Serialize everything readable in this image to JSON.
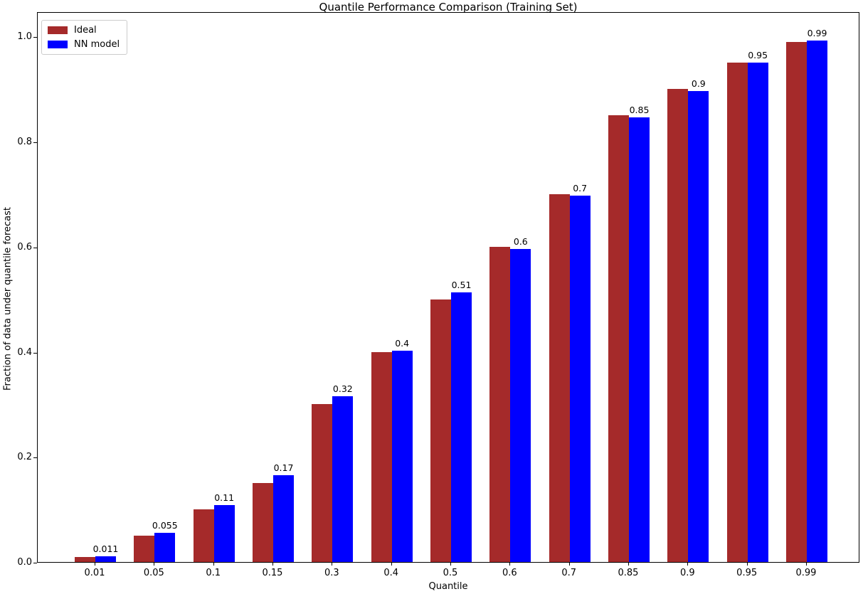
{
  "chart_data": {
    "type": "bar",
    "title": "Quantile Performance Comparison (Training Set)",
    "xlabel": "Quantile",
    "ylabel": "Fraction of data under quantile forecast",
    "categories": [
      "0.01",
      "0.05",
      "0.1",
      "0.15",
      "0.3",
      "0.4",
      "0.5",
      "0.6",
      "0.7",
      "0.85",
      "0.9",
      "0.95",
      "0.99"
    ],
    "series": [
      {
        "name": "Ideal",
        "color": "#A52A2A",
        "values": [
          0.01,
          0.05,
          0.1,
          0.15,
          0.3,
          0.4,
          0.5,
          0.6,
          0.7,
          0.85,
          0.9,
          0.95,
          0.99
        ]
      },
      {
        "name": "NN model",
        "color": "#0000FF",
        "values": [
          0.011,
          0.055,
          0.108,
          0.165,
          0.315,
          0.402,
          0.513,
          0.596,
          0.698,
          0.846,
          0.897,
          0.951,
          0.992
        ],
        "labels": [
          "0.011",
          "0.055",
          "0.11",
          "0.17",
          "0.32",
          "0.4",
          "0.51",
          "0.6",
          "0.7",
          "0.85",
          "0.9",
          "0.95",
          "0.99"
        ]
      }
    ],
    "yticks": [
      "0.0",
      "0.2",
      "0.4",
      "0.6",
      "0.8",
      "1.0"
    ],
    "ylim": [
      0,
      1.048
    ],
    "grid": false,
    "legend_position": "upper-left"
  }
}
